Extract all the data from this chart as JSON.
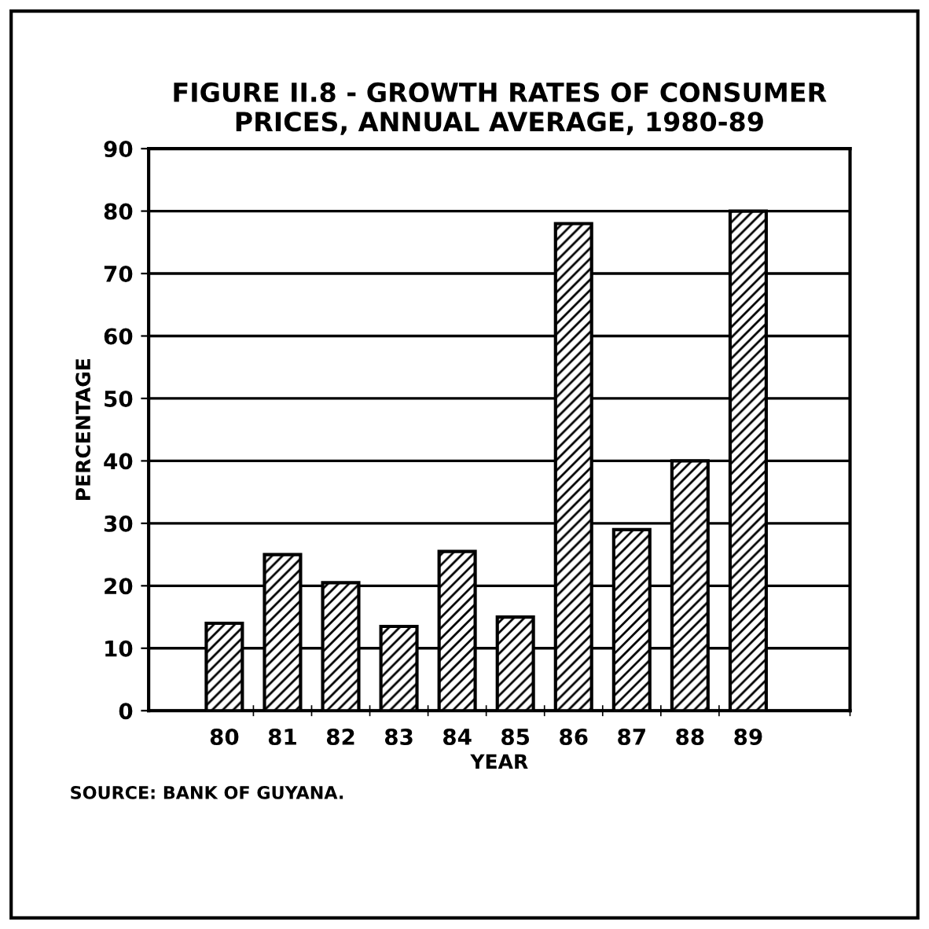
{
  "chart_data": {
    "type": "bar",
    "title": "FIGURE II.8 - GROWTH RATES OF CONSUMER\nPRICES, ANNUAL AVERAGE, 1980-89",
    "xlabel": "YEAR",
    "ylabel": "PERCENTAGE",
    "categories": [
      "80",
      "81",
      "82",
      "83",
      "84",
      "85",
      "86",
      "87",
      "88",
      "89"
    ],
    "values": [
      14,
      25,
      20.5,
      13.5,
      25.5,
      15,
      78,
      29,
      40,
      80
    ],
    "color": "#000000",
    "ylim": [
      0,
      90
    ],
    "yticks": [
      0,
      10,
      20,
      30,
      40,
      50,
      60,
      70,
      80,
      90
    ],
    "grid": "y",
    "annotations": [
      "SOURCE: BANK OF GUYANA."
    ]
  }
}
